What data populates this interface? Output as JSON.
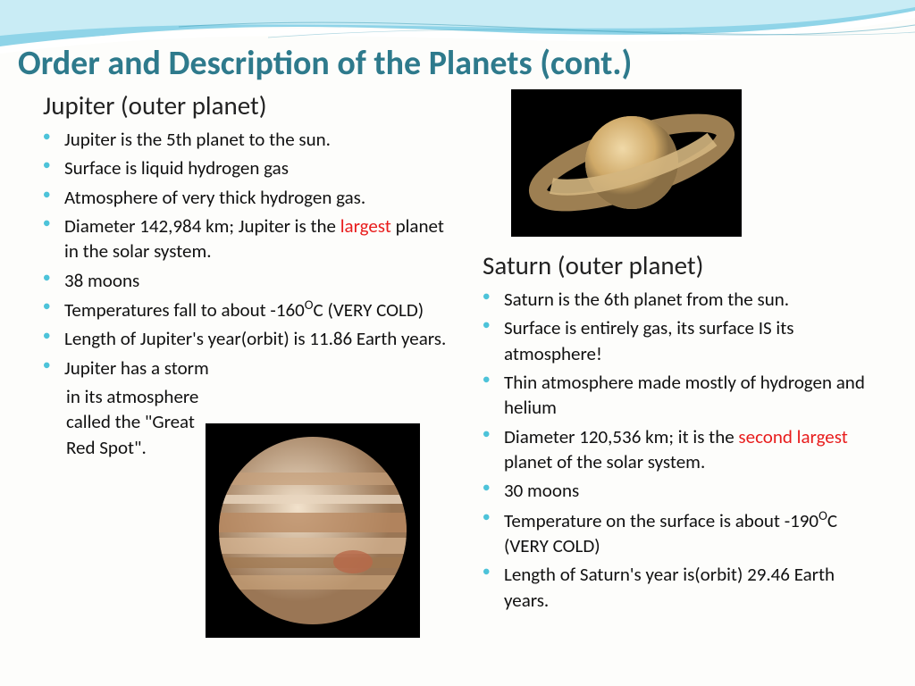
{
  "title": "Order and Description of the Planets (cont.)",
  "colors": {
    "title_color": "#2e7a8c",
    "bullet_color": "#4dc3d9",
    "highlight_color": "#e81c1c",
    "text_color": "#111111",
    "wave_light": "#a8dff0",
    "wave_dark": "#5bb9d4"
  },
  "left": {
    "heading": "Jupiter (outer planet)",
    "bullets": [
      {
        "text": "Jupiter is the 5th planet to the sun."
      },
      {
        "text": "Surface is liquid hydrogen gas"
      },
      {
        "text": "Atmosphere of very thick hydrogen gas."
      },
      {
        "html": "Diameter 142,984 km; Jupiter is the <span class=\"red\">largest</span> planet in the solar system."
      },
      {
        "text": "38 moons"
      },
      {
        "html": "Temperatures fall to about -160<span class=\"sup\">O</span>C (VERY COLD)"
      },
      {
        "text": "Length of Jupiter's year(orbit) is 11.86 Earth years."
      },
      {
        "text": "Jupiter has a storm"
      }
    ],
    "continuation": [
      " in its atmosphere",
      " called the \"Great",
      "Red Spot\"."
    ],
    "image": {
      "label": "jupiter-image",
      "body_colors": [
        "#e6cdb2",
        "#caa07a",
        "#8a6a52",
        "#d9b896"
      ],
      "background": "#000000"
    }
  },
  "right": {
    "heading": "Saturn (outer planet)",
    "bullets": [
      {
        "text": "Saturn is the 6th planet from the sun."
      },
      {
        "text": "Surface is entirely gas, its surface IS its atmosphere!"
      },
      {
        "text": "Thin atmosphere made mostly of hydrogen and helium"
      },
      {
        "html": "Diameter 120,536 km; it is the <span class=\"red\">second largest</span> planet of the solar system."
      },
      {
        "text": "30 moons"
      },
      {
        "html": "Temperature on the surface is about -190<span class=\"sup\">O</span>C  (VERY COLD)"
      },
      {
        "text": "Length of Saturn's year is(orbit) 29.46 Earth years."
      }
    ],
    "image": {
      "label": "saturn-image",
      "body_color": "#d9b77a",
      "ring_color": "#c9a968",
      "background": "#000000"
    }
  }
}
